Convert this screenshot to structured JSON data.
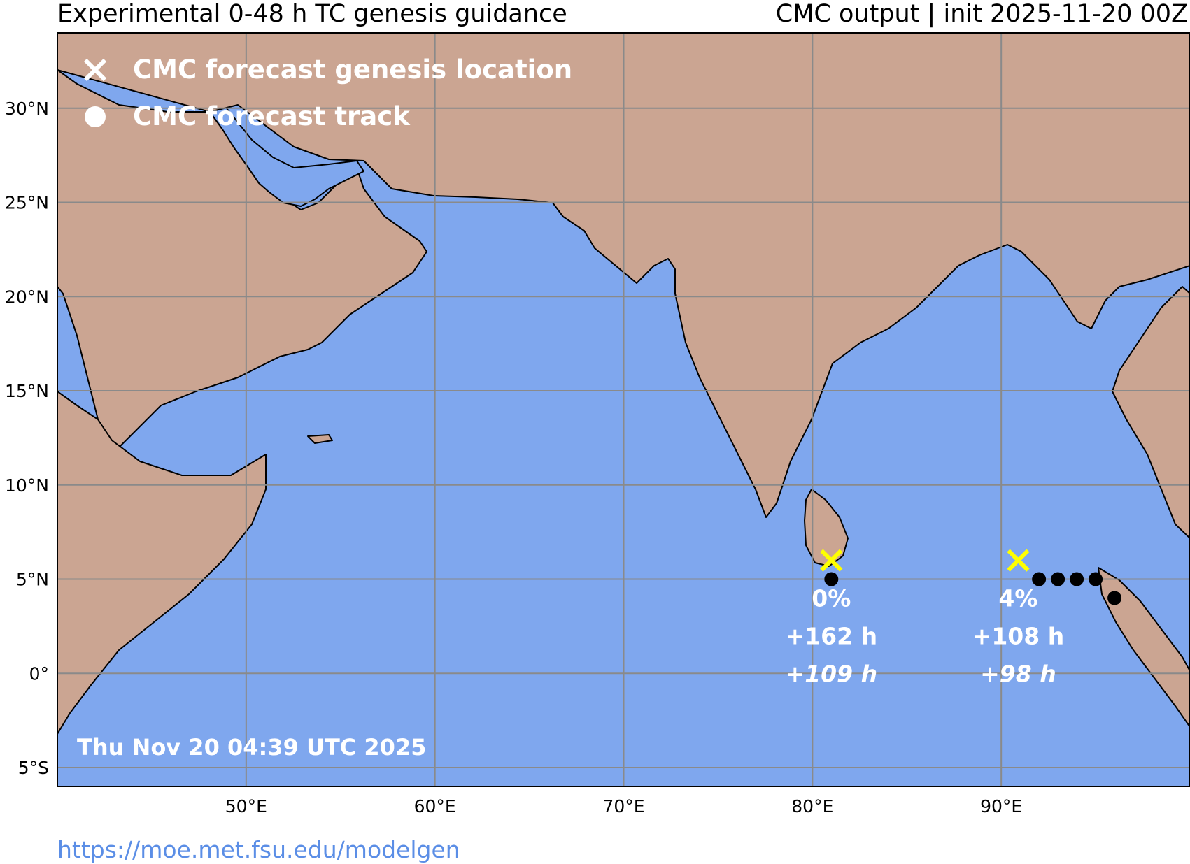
{
  "header": {
    "title_left": "Experimental 0-48 h TC genesis guidance",
    "title_right": "CMC output | init 2025-11-20 00Z"
  },
  "legend": [
    {
      "marker": "x-icon",
      "label": "CMC forecast genesis location"
    },
    {
      "marker": "dot-icon",
      "label": "CMC forecast track"
    }
  ],
  "map": {
    "lon_range": [
      40,
      100
    ],
    "lat_range": [
      -6,
      34
    ],
    "lat_ticks": [
      30,
      25,
      20,
      15,
      10,
      5,
      0,
      -5
    ],
    "lat_tick_labels": [
      "30°N",
      "25°N",
      "20°N",
      "15°N",
      "10°N",
      "5°N",
      "0°",
      "5°S"
    ],
    "lon_ticks": [
      50,
      60,
      70,
      80,
      90
    ],
    "lon_tick_labels": [
      "50°E",
      "60°E",
      "70°E",
      "80°E",
      "90°E"
    ],
    "colors": {
      "ocean": "#7fa7ee",
      "land": "#cba592",
      "grid": "#8a8a8a",
      "genesis_marker": "#ffff00",
      "track_dot": "#000000",
      "label": "#ffffff"
    },
    "timestamp": "Thu Nov 20 04:39 UTC 2025"
  },
  "systems": [
    {
      "genesis": {
        "lon": 81.0,
        "lat": 6.0
      },
      "track": [
        {
          "lon": 81.0,
          "lat": 5.0
        }
      ],
      "probability": "0%",
      "lead_time": "+162 h",
      "lead_time_alt": "+109 h"
    },
    {
      "genesis": {
        "lon": 90.9,
        "lat": 6.0
      },
      "track": [
        {
          "lon": 92.0,
          "lat": 5.0
        },
        {
          "lon": 93.0,
          "lat": 5.0
        },
        {
          "lon": 94.0,
          "lat": 5.0
        },
        {
          "lon": 95.0,
          "lat": 5.0
        },
        {
          "lon": 96.0,
          "lat": 4.0
        }
      ],
      "probability": "4%",
      "lead_time": "+108 h",
      "lead_time_alt": "+98 h"
    }
  ],
  "footer": {
    "url": "https://moe.met.fsu.edu/modelgen"
  }
}
